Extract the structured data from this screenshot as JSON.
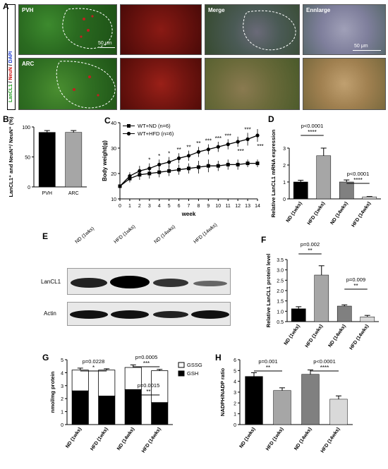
{
  "panelA": {
    "label": "A",
    "ylabel_green": "LanCL1",
    "ylabel_sep1": " / ",
    "ylabel_red": "NeuN",
    "ylabel_sep2": " / ",
    "ylabel_blue": "DAPI",
    "row1_region": "PVH",
    "row2_region": "ARC",
    "col_merge": "Merge",
    "col_enlarge": "Ennlarge",
    "scale1": "50 μm",
    "scale2": "50 μm"
  },
  "panelB": {
    "label": "B",
    "ylabel": "LanCL1⁺ and NeuN⁺/ NeuN⁺ (%)",
    "chart_data": {
      "type": "bar",
      "categories": [
        "PVH",
        "ARC"
      ],
      "values": [
        91,
        91
      ],
      "errors": [
        3,
        3
      ],
      "colors": [
        "#000000",
        "#a6a6a6"
      ],
      "ylim": [
        0,
        100
      ],
      "yticks": [
        "0",
        "50",
        "100"
      ]
    }
  },
  "panelC": {
    "label": "C",
    "chart_data": {
      "type": "line",
      "ylabel": "Body weight(g)",
      "xlabel": "week",
      "x": [
        0,
        1,
        2,
        3,
        4,
        5,
        6,
        7,
        8,
        9,
        10,
        11,
        12,
        13,
        14
      ],
      "xticks": [
        "0",
        "1",
        "2",
        "3",
        "4",
        "5",
        "6",
        "7",
        "8",
        "9",
        "10",
        "11",
        "12",
        "13",
        "14"
      ],
      "ylim": [
        10,
        40
      ],
      "yticks": [
        "10",
        "20",
        "30",
        "40"
      ],
      "series": [
        {
          "name": "WT+ND (n=6)",
          "marker": "square",
          "values": [
            15,
            18,
            19.5,
            20,
            20.5,
            21,
            21.5,
            22,
            22.5,
            23,
            23,
            23.5,
            23.5,
            24,
            24
          ],
          "errors": [
            1,
            1.5,
            2,
            2,
            2,
            2,
            2,
            2,
            2.5,
            2.5,
            2,
            2,
            2,
            1.5,
            1.5
          ]
        },
        {
          "name": "WT+HFD (n=6)",
          "marker": "circle",
          "values": [
            15,
            19,
            21,
            22,
            23.5,
            24.5,
            26,
            27,
            28.5,
            29.5,
            30.5,
            31.5,
            32.5,
            33.5,
            35
          ],
          "errors": [
            1,
            1.5,
            2,
            2,
            2,
            2,
            2,
            2,
            2,
            2,
            2,
            2,
            2,
            2.5,
            2.5
          ]
        }
      ],
      "significance_upper": [
        "*",
        "*",
        "*",
        "**",
        "**",
        "**",
        "***",
        "***",
        "***",
        "***"
      ],
      "significance_upper_weeks": [
        3,
        4,
        5,
        6,
        7,
        8,
        9,
        10,
        11,
        13
      ],
      "significance_lower": [
        "***",
        "***"
      ],
      "significance_lower_weeks": [
        12,
        14
      ]
    }
  },
  "panelD": {
    "label": "D",
    "chart_data": {
      "type": "bar",
      "ylabel": "Relative LanCL1 mRNA expression",
      "categories": [
        "ND (1wks)",
        "HFD (1wks)",
        "ND (14wks)",
        "HFD (14wks)"
      ],
      "values": [
        1.0,
        2.55,
        1.0,
        0.12
      ],
      "errors": [
        0.1,
        0.45,
        0.12,
        0.02
      ],
      "colors": [
        "#000000",
        "#a6a6a6",
        "#808080",
        "#d9d9d9"
      ],
      "ylim": [
        0,
        3
      ],
      "yticks": [
        "0",
        "1",
        "2",
        "3"
      ],
      "annotations": [
        {
          "p": "p<0.0001",
          "stars": "****"
        },
        {
          "p": "p<0.0001",
          "stars": "****"
        }
      ]
    }
  },
  "panelE": {
    "label": "E",
    "lanes": [
      "ND (1wks)",
      "HFD (1wks)",
      "ND (14wks)",
      "HFD (14wks)"
    ],
    "band1": "LanCL1",
    "band2": "Actin"
  },
  "panelF": {
    "label": "F",
    "chart_data": {
      "type": "bar",
      "ylabel": "Relative LanCL1 protein level",
      "categories": [
        "ND (1wks)",
        "HFD (1wks)",
        "ND (14wks)",
        "HFD (14wks)"
      ],
      "values": [
        1.12,
        2.75,
        1.25,
        0.73
      ],
      "errors": [
        0.1,
        0.45,
        0.06,
        0.07
      ],
      "colors": [
        "#000000",
        "#a6a6a6",
        "#808080",
        "#d9d9d9"
      ],
      "ylim": [
        0.5,
        3.5
      ],
      "yticks": [
        "0.5",
        "1.0",
        "1.5",
        "2.0",
        "2.5",
        "3.0",
        "3.5"
      ],
      "annotations": [
        {
          "p": "p=0.002",
          "stars": "**"
        },
        {
          "p": "p=0.009",
          "stars": "**"
        }
      ]
    }
  },
  "panelG": {
    "label": "G",
    "chart_data": {
      "type": "bar",
      "ylabel": "nmol/mg protein",
      "categories": [
        "ND (1wks)",
        "HFD (1wks)",
        "ND (14wks)",
        "HFD (14wks)"
      ],
      "series": [
        {
          "name": "GSH",
          "color": "#000000",
          "values": [
            2.6,
            2.2,
            2.7,
            1.7
          ],
          "errors": [
            0.3,
            0.2,
            0.3,
            0.15
          ]
        },
        {
          "name": "GSSG",
          "color": "#ffffff",
          "values": [
            1.6,
            2.0,
            1.7,
            2.45
          ],
          "errors": [
            0.15,
            0.1,
            0.2,
            0.1
          ]
        }
      ],
      "ylim": [
        0,
        5
      ],
      "yticks": [
        "0",
        "1",
        "2",
        "3",
        "4",
        "5"
      ],
      "annotations": [
        {
          "p": "p=0.0228",
          "stars": "*"
        },
        {
          "p": "p=0.0005",
          "stars": "***"
        },
        {
          "p": "p=0.0015",
          "stars": "**"
        }
      ]
    }
  },
  "panelH": {
    "label": "H",
    "chart_data": {
      "type": "bar",
      "ylabel": "NADPH/NADP ratio",
      "categories": [
        "ND (1wks)",
        "HFD (1wks)",
        "ND (14wks)",
        "HFD (14wks)"
      ],
      "values": [
        4.45,
        3.15,
        4.65,
        2.35
      ],
      "errors": [
        0.35,
        0.25,
        0.4,
        0.3
      ],
      "colors": [
        "#000000",
        "#a6a6a6",
        "#808080",
        "#d9d9d9"
      ],
      "ylim": [
        0,
        6
      ],
      "yticks": [
        "0",
        "1",
        "2",
        "3",
        "4",
        "5",
        "6"
      ],
      "annotations": [
        {
          "p": "p=0.001",
          "stars": "**"
        },
        {
          "p": "p<0.0001",
          "stars": "****"
        }
      ]
    }
  }
}
